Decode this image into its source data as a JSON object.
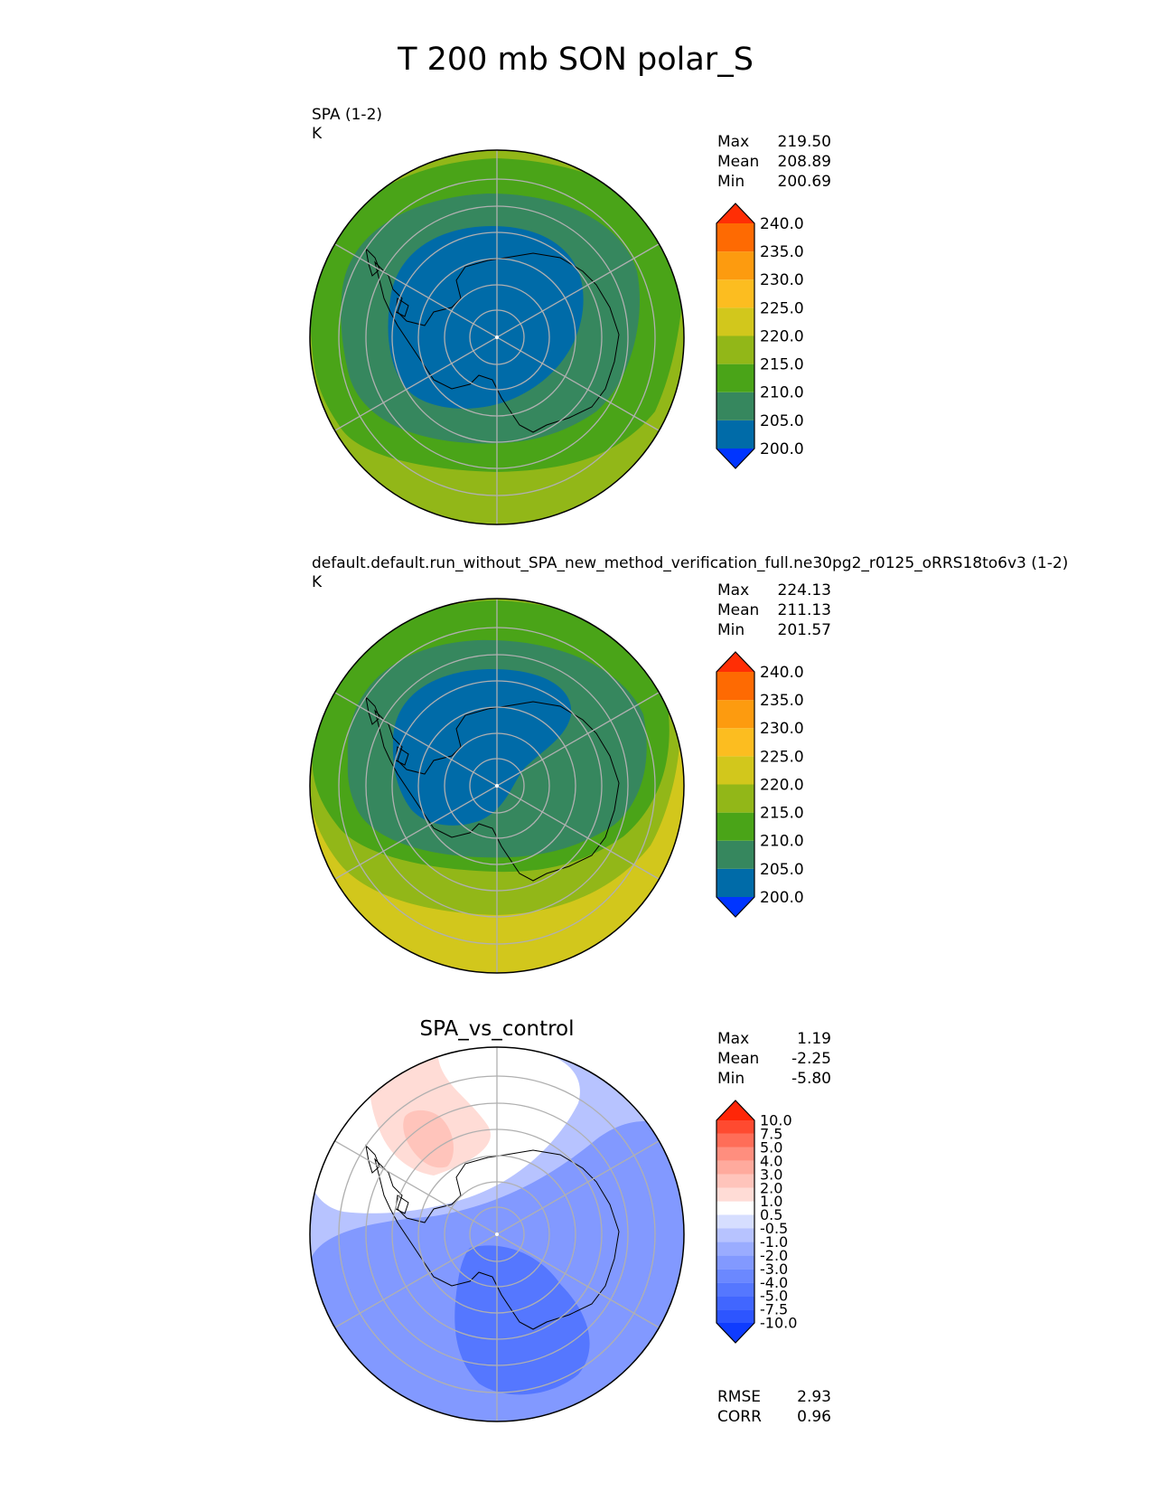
{
  "figure": {
    "title": "T 200 mb SON polar_S"
  },
  "panels": [
    {
      "id": "test",
      "label_line1": "SPA (1-2)",
      "label_line2": "K",
      "center_title": "",
      "stats": [
        {
          "label": "Max",
          "value": "219.50"
        },
        {
          "label": "Mean",
          "value": "208.89"
        },
        {
          "label": "Min",
          "value": "200.69"
        }
      ],
      "colorbar": {
        "tick_labels": [
          "240.0",
          "235.0",
          "230.0",
          "225.0",
          "220.0",
          "215.0",
          "210.0",
          "205.0",
          "200.0"
        ],
        "colors": [
          "#0035ff",
          "#006ba8",
          "#36875e",
          "#4aa418",
          "#92b718",
          "#d2c71c",
          "#fcbd20",
          "#fd9b0f",
          "#fe6a02",
          "#ff2e05"
        ]
      },
      "regions": [
        {
          "name": "ring-outer-yellowgreen",
          "value_range": "215-220",
          "color": "#92b718"
        },
        {
          "name": "ring-green",
          "value_range": "210-215",
          "color": "#4aa418"
        },
        {
          "name": "ring-teal",
          "value_range": "205-210",
          "color": "#36875e"
        },
        {
          "name": "core-blue",
          "value_range": "200-205",
          "color": "#006ba8"
        }
      ]
    },
    {
      "id": "ref",
      "label_line1": "default.default.run_without_SPA_new_method_verification_full.ne30pg2_r0125_oRRS18to6v3 (1-2)",
      "label_line2": "K",
      "center_title": "",
      "stats": [
        {
          "label": "Max",
          "value": "224.13"
        },
        {
          "label": "Mean",
          "value": "211.13"
        },
        {
          "label": "Min",
          "value": "201.57"
        }
      ],
      "colorbar": {
        "tick_labels": [
          "240.0",
          "235.0",
          "230.0",
          "225.0",
          "220.0",
          "215.0",
          "210.0",
          "205.0",
          "200.0"
        ],
        "colors": [
          "#0035ff",
          "#006ba8",
          "#36875e",
          "#4aa418",
          "#92b718",
          "#d2c71c",
          "#fcbd20",
          "#fd9b0f",
          "#fe6a02",
          "#ff2e05"
        ]
      },
      "regions": [
        {
          "name": "edge-yellow",
          "value_range": "220-225",
          "color": "#d2c71c"
        },
        {
          "name": "ring-outer-yellowgreen",
          "value_range": "215-220",
          "color": "#92b718"
        },
        {
          "name": "ring-green",
          "value_range": "210-215",
          "color": "#4aa418"
        },
        {
          "name": "ring-teal",
          "value_range": "205-210",
          "color": "#36875e"
        },
        {
          "name": "core-blue",
          "value_range": "200-205",
          "color": "#006ba8"
        }
      ]
    },
    {
      "id": "diff",
      "label_line1": "",
      "label_line2": "",
      "center_title": "SPA_vs_control",
      "stats": [
        {
          "label": "Max",
          "value": "1.19"
        },
        {
          "label": "Mean",
          "value": "-2.25"
        },
        {
          "label": "Min",
          "value": "-5.80"
        }
      ],
      "colorbar": {
        "tick_labels": [
          "10.0",
          "7.5",
          "5.0",
          "4.0",
          "3.0",
          "2.0",
          "1.0",
          "0.5",
          "-0.5",
          "-1.0",
          "-2.0",
          "-3.0",
          "-4.0",
          "-5.0",
          "-7.5",
          "-10.0"
        ],
        "colors": [
          "#0f3cff",
          "#2d55ff",
          "#4166ff",
          "#5577ff",
          "#6b88ff",
          "#8299ff",
          "#9aacff",
          "#b7c3ff",
          "#d6deff",
          "#ffffff",
          "#ffdcd6",
          "#ffc4bb",
          "#ffaa9d",
          "#ff8e7e",
          "#ff6d58",
          "#ff4a30",
          "#ff2608"
        ]
      },
      "regions": [
        {
          "name": "background-light-blue",
          "value_range": "-2 to -1",
          "color": "#b7c3ff"
        },
        {
          "name": "white-band",
          "value_range": "-0.5 to 0.5",
          "color": "#ffffff"
        },
        {
          "name": "pale-red-region",
          "value_range": "0.5 to 1",
          "color": "#ffdcd6"
        },
        {
          "name": "red-core",
          "value_range": "1 to 2",
          "color": "#ffc4bb"
        },
        {
          "name": "mid-blue-region",
          "value_range": "-4 to -2",
          "color": "#8299ff"
        },
        {
          "name": "deep-blue-region",
          "value_range": "-5 to -4",
          "color": "#5577ff"
        }
      ],
      "metrics": [
        {
          "label": "RMSE",
          "value": "2.93"
        },
        {
          "label": "CORR",
          "value": "0.96"
        }
      ]
    }
  ]
}
